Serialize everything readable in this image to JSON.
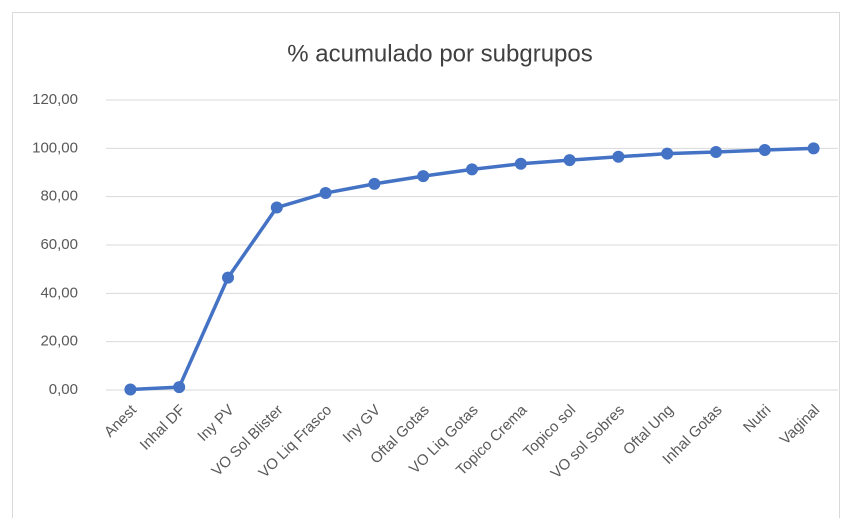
{
  "chart_data": {
    "type": "line",
    "title": "% acumulado por subgrupos",
    "categories": [
      "Anest",
      "Inhal DF",
      "Iny PV",
      "VO Sol Blister",
      "VO Liq Frasco",
      "Iny GV",
      "Oftal Gotas",
      "VO Liq Gotas",
      "Topico Crema",
      "Topico sol",
      "VO sol Sobres",
      "Oftal Ung",
      "Inhal Gotas",
      "Nutri",
      "Vaginal"
    ],
    "values": [
      0.2,
      1.2,
      46.5,
      75.5,
      81.5,
      85.3,
      88.5,
      91.3,
      93.6,
      95.1,
      96.5,
      97.8,
      98.5,
      99.3,
      100
    ],
    "color": "#4472c4",
    "ylim": [
      0,
      120
    ],
    "yticks": [
      {
        "value": 0,
        "label": "0,00"
      },
      {
        "value": 20,
        "label": "20,00"
      },
      {
        "value": 40,
        "label": "40,00"
      },
      {
        "value": 60,
        "label": "60,00"
      },
      {
        "value": 80,
        "label": "80,00"
      },
      {
        "value": 100,
        "label": "100,00"
      },
      {
        "value": 120,
        "label": "120,00"
      }
    ],
    "grid": true
  }
}
